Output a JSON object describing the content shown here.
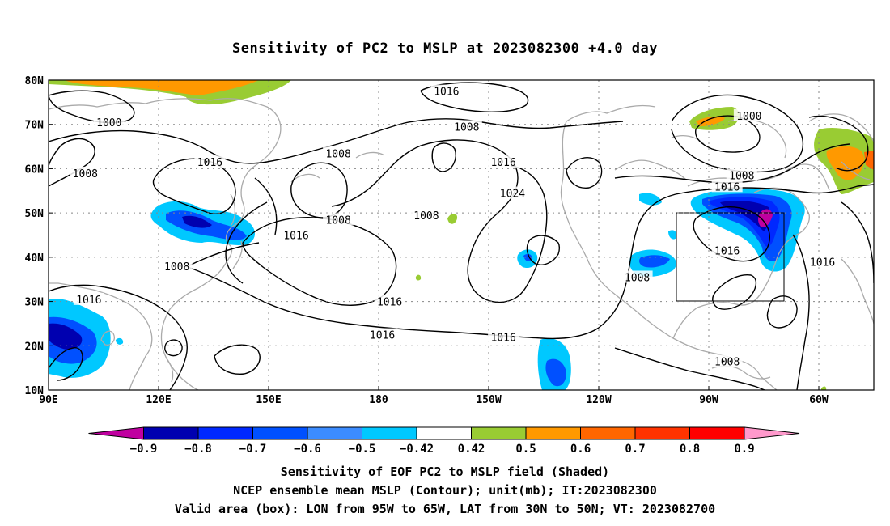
{
  "title": "Sensitivity of PC2 to MSLP at 2023082300 +4.0 day",
  "map": {
    "lon_ticks": [
      "90E",
      "120E",
      "150E",
      "180",
      "150W",
      "120W",
      "90W",
      "60W"
    ],
    "lat_ticks": [
      "80N",
      "70N",
      "60N",
      "50N",
      "40N",
      "30N",
      "20N",
      "10N"
    ],
    "extent": {
      "lon_west": 90,
      "lon_east": 315,
      "lat_south": 10,
      "lat_north": 80
    },
    "valid_box": {
      "lon_west": "95W",
      "lon_east": "65W",
      "lat_south": "30N",
      "lat_north": "50N"
    },
    "contour_labels": [
      {
        "text": "1016",
        "lon": 198.5,
        "lat": 77.5
      },
      {
        "text": "1000",
        "lon": 106.5,
        "lat": 70.5
      },
      {
        "text": "1000",
        "lon": 281,
        "lat": 72
      },
      {
        "text": "1008",
        "lon": 204,
        "lat": 69.5
      },
      {
        "text": "1008",
        "lon": 169,
        "lat": 63.5
      },
      {
        "text": "1016",
        "lon": 134,
        "lat": 61.5
      },
      {
        "text": "1008",
        "lon": 100,
        "lat": 59
      },
      {
        "text": "1016",
        "lon": 214,
        "lat": 61.5
      },
      {
        "text": "1008",
        "lon": 279,
        "lat": 58.5
      },
      {
        "text": "1016",
        "lon": 275,
        "lat": 56
      },
      {
        "text": "1024",
        "lon": 216.5,
        "lat": 54.5
      },
      {
        "text": "1008",
        "lon": 169,
        "lat": 48.5
      },
      {
        "text": "1008",
        "lon": 193,
        "lat": 49.5
      },
      {
        "text": "1016",
        "lon": 157.5,
        "lat": 45
      },
      {
        "text": "1016",
        "lon": 275,
        "lat": 41.5
      },
      {
        "text": "1016",
        "lon": 301,
        "lat": 39
      },
      {
        "text": "1008",
        "lon": 125,
        "lat": 38
      },
      {
        "text": "1008",
        "lon": 250.5,
        "lat": 35.5
      },
      {
        "text": "1016",
        "lon": 101,
        "lat": 30.5
      },
      {
        "text": "1016",
        "lon": 183,
        "lat": 30
      },
      {
        "text": "1016",
        "lon": 181,
        "lat": 22.5
      },
      {
        "text": "1016",
        "lon": 214,
        "lat": 22
      },
      {
        "text": "1008",
        "lon": 275,
        "lat": 16.5
      }
    ]
  },
  "colorbar": {
    "labels": [
      "−0.9",
      "−0.8",
      "−0.7",
      "−0.6",
      "−0.5",
      "−0.42",
      "0.42",
      "0.5",
      "0.6",
      "0.7",
      "0.8",
      "0.9"
    ],
    "colors": [
      "#c000a0",
      "#0000b0",
      "#0028ff",
      "#0050ff",
      "#3c8cff",
      "#00c8ff",
      "#ffffff",
      "#99cc33",
      "#ff9900",
      "#ff6600",
      "#ff3300",
      "#ff0000",
      "#ff99cc"
    ]
  },
  "footer": {
    "line1": "Sensitivity of EOF PC2 to MSLP field (Shaded)",
    "line2": "NCEP ensemble mean MSLP (Contour); unit(mb); IT:2023082300",
    "line3": "Valid area (box): LON from 95W to 65W, LAT from 30N to 50N; VT: 2023082700"
  }
}
